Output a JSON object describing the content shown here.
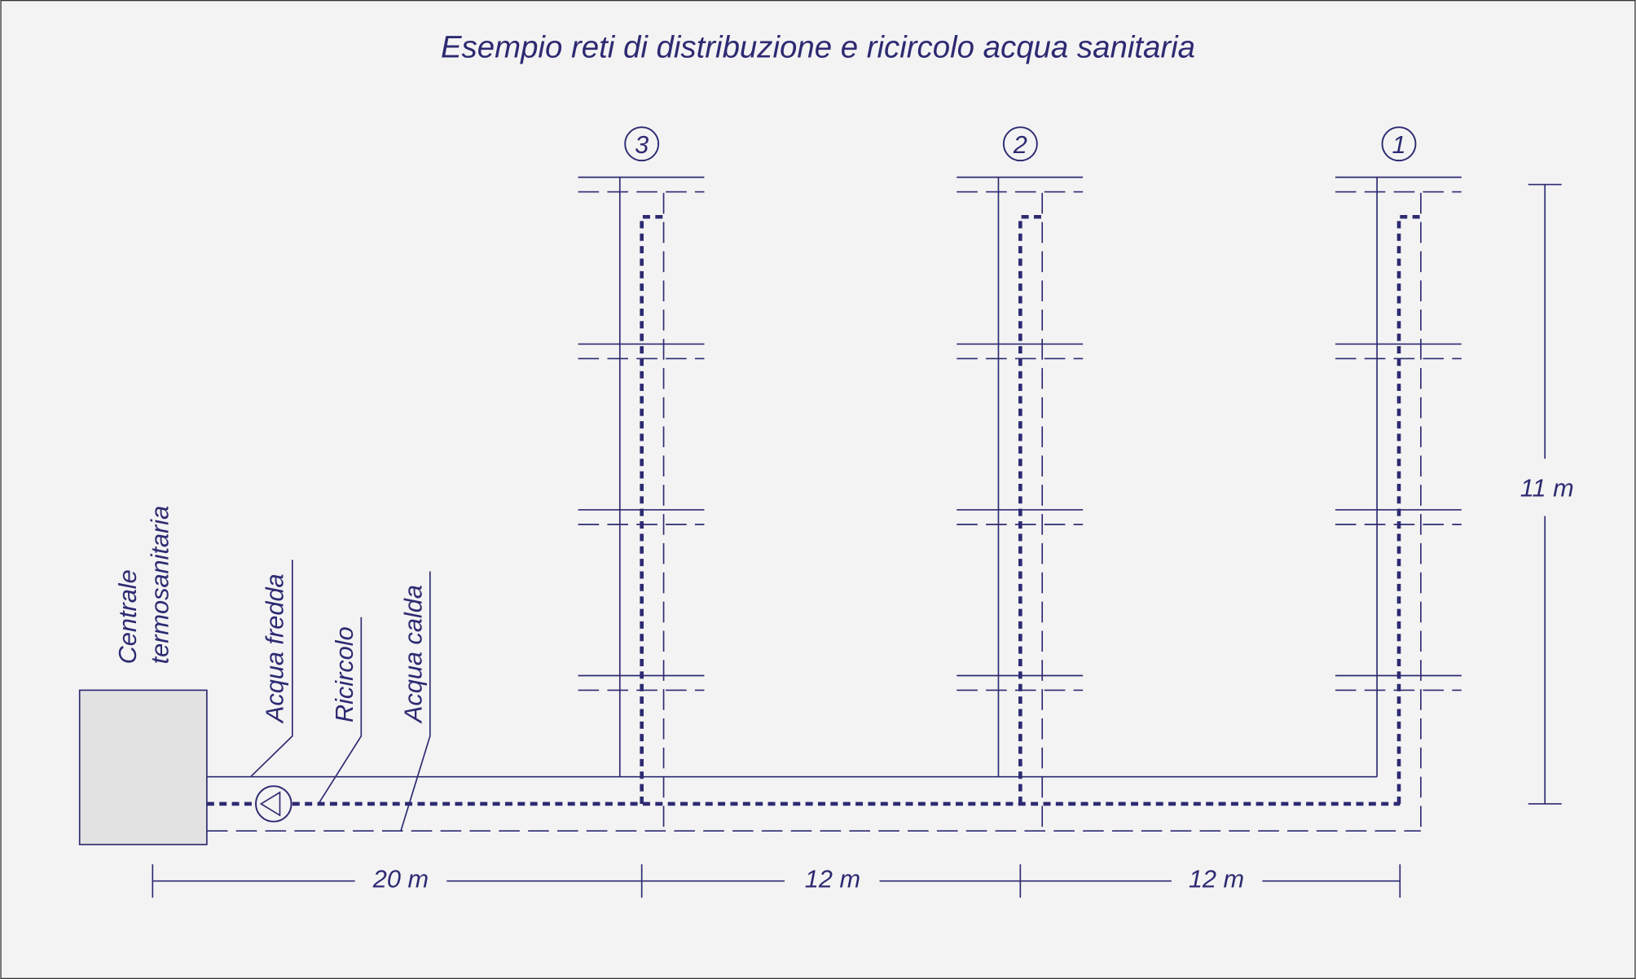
{
  "title": "Esempio reti di distribuzione e ricircolo acqua sanitaria",
  "risers": [
    "3",
    "2",
    "1"
  ],
  "labels": {
    "plant": [
      "Centrale",
      "termosanitaria"
    ],
    "cold": "Acqua fredda",
    "recirc": "Ricircolo",
    "hot": "Acqua calda"
  },
  "dimensions": {
    "horizontal": [
      "20 m",
      "12 m",
      "12 m"
    ],
    "vertical": "11 m"
  }
}
